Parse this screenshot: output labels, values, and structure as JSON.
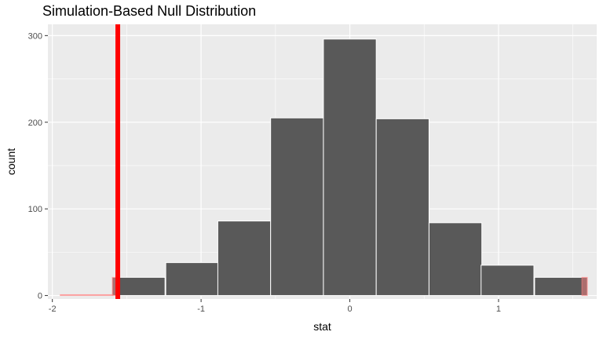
{
  "chart_data": {
    "type": "bar",
    "title": "Simulation-Based Null Distribution",
    "xlabel": "stat",
    "ylabel": "count",
    "xlim": [
      -2.03,
      1.66
    ],
    "ylim": [
      -4,
      313
    ],
    "x_ticks": [
      -2,
      -1,
      0,
      1
    ],
    "x_tick_labels": [
      "-2",
      "-1",
      "0",
      "1"
    ],
    "y_ticks": [
      0,
      100,
      200,
      300
    ],
    "y_tick_labels": [
      "0",
      "100",
      "200",
      "300"
    ],
    "grid": true,
    "bin_width": 0.355,
    "bins": [
      {
        "center": -1.77,
        "count": 1
      },
      {
        "center": -1.42,
        "count": 21
      },
      {
        "center": -1.06,
        "count": 38
      },
      {
        "center": -0.71,
        "count": 86
      },
      {
        "center": -0.355,
        "count": 205
      },
      {
        "center": 0.0,
        "count": 296
      },
      {
        "center": 0.355,
        "count": 204
      },
      {
        "center": 0.71,
        "count": 84
      },
      {
        "center": 1.06,
        "count": 35
      },
      {
        "center": 1.42,
        "count": 21
      }
    ],
    "shaded_regions": [
      {
        "from": -2.03,
        "to": -1.56
      },
      {
        "from": 1.56,
        "to": 1.66
      }
    ],
    "observed_stat": -1.56,
    "colors": {
      "panel_background": "#ebebeb",
      "grid_major": "#ffffff",
      "bar_fill": "#595959",
      "bar_outline": "#ffffff",
      "shade_fill": "#f08080",
      "shade_outline": "#ff8080",
      "obs_line": "#ff0000",
      "tick_label": "#4d4d4d"
    }
  }
}
